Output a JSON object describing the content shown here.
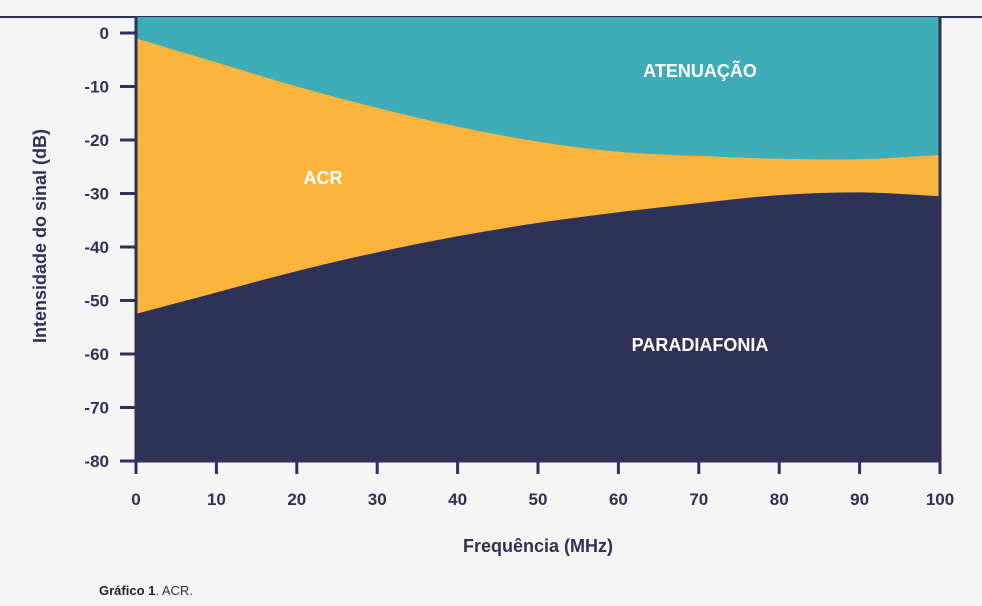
{
  "colors": {
    "atenuacao": "#3fadb7",
    "acr": "#fbb43c",
    "paradiafonia": "#2e3256",
    "axis": "#2e3256"
  },
  "caption": {
    "bold": "Gráfico 1",
    "rest": ". ACR."
  },
  "chart_data": {
    "type": "area",
    "xlabel": "Frequência (MHz)",
    "ylabel": "Intensidade do sinal (dB)",
    "xlim": [
      0,
      100
    ],
    "ylim": [
      -80,
      0
    ],
    "xticks": [
      0,
      10,
      20,
      30,
      40,
      50,
      60,
      70,
      80,
      90,
      100
    ],
    "yticks": [
      0,
      -10,
      -20,
      -30,
      -40,
      -50,
      -60,
      -70,
      -80
    ],
    "grid": false,
    "series": [
      {
        "name": "ATENUAÇÃO",
        "x": [
          0,
          10,
          20,
          30,
          40,
          50,
          60,
          70,
          80,
          90,
          100
        ],
        "values": [
          -1,
          -5.5,
          -10,
          -14,
          -17.5,
          -20.3,
          -22.2,
          -23,
          -23.5,
          -23.6,
          -22.8
        ]
      },
      {
        "name": "PARADIAFONIA",
        "x": [
          0,
          10,
          20,
          30,
          40,
          50,
          60,
          70,
          80,
          90,
          100
        ],
        "values": [
          -52.5,
          -48.5,
          -44.5,
          -41,
          -38,
          -35.5,
          -33.5,
          -31.8,
          -30.3,
          -29.8,
          -30.5
        ]
      },
      {
        "name": "ACR"
      }
    ]
  }
}
